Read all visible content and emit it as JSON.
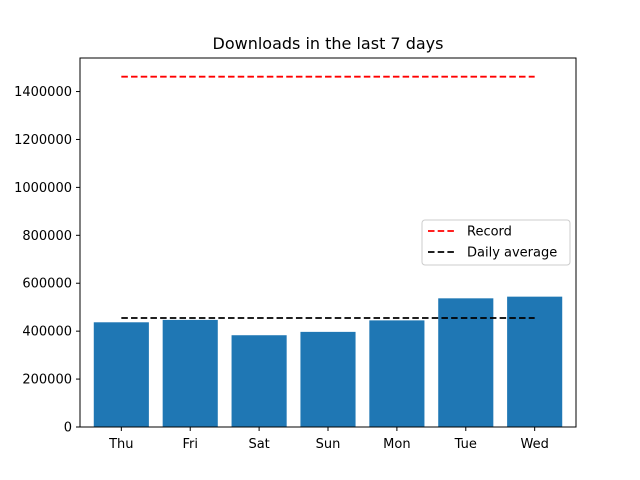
{
  "chart_data": {
    "type": "bar",
    "title": "Downloads in the last 7 days",
    "xlabel": "",
    "ylabel": "",
    "categories": [
      "Thu",
      "Fri",
      "Sat",
      "Sun",
      "Mon",
      "Tue",
      "Wed"
    ],
    "values": [
      437000,
      447000,
      383000,
      397000,
      445000,
      537000,
      544000
    ],
    "ylim": [
      0,
      1540000
    ],
    "yticks": [
      0,
      200000,
      400000,
      600000,
      800000,
      1000000,
      1200000,
      1400000
    ],
    "ytick_labels": [
      "0",
      "200000",
      "400000",
      "600000",
      "800000",
      "1000000",
      "1200000",
      "1400000"
    ],
    "bar_color": "#1f77b4",
    "grid": false,
    "reference_lines": [
      {
        "name": "Record",
        "value": 1462000,
        "color": "#ff0000",
        "style": "dashed"
      },
      {
        "name": "Daily average",
        "value": 455000,
        "color": "#000000",
        "style": "dashed"
      }
    ],
    "legend": {
      "placement": "center-right"
    }
  }
}
